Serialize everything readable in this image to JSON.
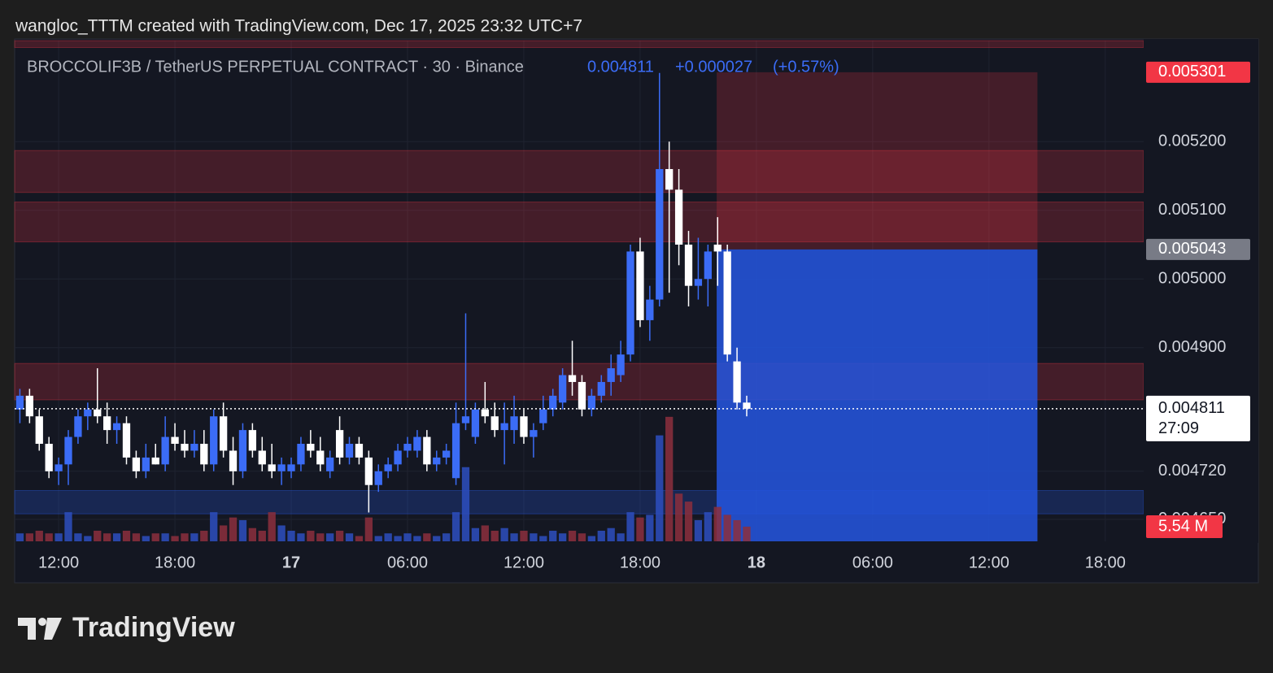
{
  "header": {
    "attribution": "wangloc_TTTM created with TradingView.com, Dec 17, 2025 23:32 UTC+7",
    "symbol": "BROCCOLIF3B / TetherUS PERPETUAL CONTRACT · 30 · Binance",
    "change": "+0.000027",
    "change_pct": "(+0.57%)"
  },
  "footer": {
    "logo": "TradingView"
  },
  "chart_data": {
    "type": "candlestick",
    "x": [
      10,
      10.5,
      11,
      11.5,
      12,
      12.5,
      13,
      13.5,
      14,
      14.5,
      15,
      15.5,
      16,
      16.5,
      17,
      17.5,
      18,
      18.5,
      19,
      19.5,
      20,
      20.5,
      21,
      21.5,
      22,
      22.5,
      23,
      23.5,
      24,
      24.5,
      25,
      25.5,
      26,
      26.5,
      27,
      27.5,
      28,
      28.5,
      29,
      29.5,
      30,
      30.5,
      31,
      31.5,
      32,
      32.5,
      33,
      33.5,
      34,
      34.5,
      35,
      35.5,
      36,
      36.5,
      37,
      37.5,
      38,
      38.5,
      39,
      39.5,
      40,
      40.5,
      41,
      41.5,
      42,
      42.5,
      43,
      43.5,
      44,
      44.5,
      45,
      45.5,
      46,
      46.5,
      47,
      47.5
    ],
    "open": [
      0.00481,
      0.00483,
      0.0048,
      0.00476,
      0.00472,
      0.00473,
      0.00477,
      0.0048,
      0.00481,
      0.0048,
      0.00478,
      0.00479,
      0.00474,
      0.00472,
      0.00474,
      0.00473,
      0.00477,
      0.00476,
      0.00475,
      0.00476,
      0.00473,
      0.0048,
      0.00475,
      0.00472,
      0.00478,
      0.00475,
      0.00473,
      0.00472,
      0.00472,
      0.00473,
      0.00476,
      0.00475,
      0.00472,
      0.00478,
      0.00474,
      0.00476,
      0.00474,
      0.0047,
      0.00472,
      0.00473,
      0.00475,
      0.00475,
      0.00477,
      0.00473,
      0.00474,
      0.00471,
      0.00479,
      0.00477,
      0.00481,
      0.0048,
      0.00478,
      0.00478,
      0.0048,
      0.00477,
      0.00479,
      0.00481,
      0.00482,
      0.00486,
      0.00485,
      0.00481,
      0.00483,
      0.00485,
      0.00486,
      0.00489,
      0.00504,
      0.00494,
      0.00497,
      0.00516,
      0.00513,
      0.00505,
      0.00499,
      0.005,
      0.00505,
      0.00504,
      0.00488,
      0.00482
    ],
    "high": [
      0.00484,
      0.00484,
      0.00481,
      0.00477,
      0.00474,
      0.00478,
      0.00481,
      0.00482,
      0.00487,
      0.00482,
      0.0048,
      0.0048,
      0.00475,
      0.00476,
      0.00476,
      0.0048,
      0.00479,
      0.00478,
      0.00478,
      0.00478,
      0.00481,
      0.00482,
      0.00477,
      0.00479,
      0.00479,
      0.00477,
      0.00476,
      0.00474,
      0.00474,
      0.00477,
      0.00478,
      0.00477,
      0.00475,
      0.0048,
      0.00477,
      0.00477,
      0.00475,
      0.00473,
      0.00474,
      0.00476,
      0.00477,
      0.00478,
      0.00478,
      0.00475,
      0.00476,
      0.00482,
      0.00495,
      0.00482,
      0.00485,
      0.00482,
      0.00482,
      0.00483,
      0.00481,
      0.00479,
      0.00483,
      0.00484,
      0.00487,
      0.00491,
      0.00486,
      0.00484,
      0.00486,
      0.00489,
      0.00491,
      0.00505,
      0.00506,
      0.00499,
      0.0053,
      0.0052,
      0.00516,
      0.00507,
      0.00506,
      0.00505,
      0.00509,
      0.00505,
      0.0049,
      0.00483
    ],
    "low": [
      0.00479,
      0.00479,
      0.00475,
      0.00471,
      0.0047,
      0.0047,
      0.00476,
      0.00478,
      0.00479,
      0.00476,
      0.00476,
      0.00473,
      0.00471,
      0.00471,
      0.00473,
      0.00472,
      0.00475,
      0.00474,
      0.00474,
      0.00472,
      0.00472,
      0.00474,
      0.0047,
      0.00471,
      0.00474,
      0.00472,
      0.00471,
      0.0047,
      0.00471,
      0.00472,
      0.00474,
      0.00472,
      0.00471,
      0.00473,
      0.00473,
      0.00473,
      0.00466,
      0.00469,
      0.00471,
      0.00472,
      0.00474,
      0.00474,
      0.00472,
      0.00472,
      0.00473,
      0.0047,
      0.00478,
      0.00476,
      0.00479,
      0.00477,
      0.00473,
      0.00476,
      0.00476,
      0.00474,
      0.00478,
      0.0048,
      0.00481,
      0.00483,
      0.0048,
      0.0048,
      0.00482,
      0.00483,
      0.00485,
      0.00488,
      0.00493,
      0.00491,
      0.00496,
      0.00498,
      0.00502,
      0.00496,
      0.00497,
      0.00496,
      0.00499,
      0.00488,
      0.00481,
      0.0048
    ],
    "close": [
      0.00483,
      0.0048,
      0.00476,
      0.00472,
      0.00473,
      0.00477,
      0.0048,
      0.00481,
      0.0048,
      0.00478,
      0.00479,
      0.00474,
      0.00472,
      0.00474,
      0.00473,
      0.00477,
      0.00476,
      0.00475,
      0.00476,
      0.00473,
      0.0048,
      0.00475,
      0.00472,
      0.00478,
      0.00475,
      0.00473,
      0.00472,
      0.00473,
      0.00473,
      0.00476,
      0.00475,
      0.00473,
      0.00474,
      0.00474,
      0.00476,
      0.00474,
      0.0047,
      0.00472,
      0.00473,
      0.00475,
      0.00476,
      0.00477,
      0.00473,
      0.00474,
      0.00475,
      0.00479,
      0.0048,
      0.00481,
      0.0048,
      0.00478,
      0.00479,
      0.0048,
      0.00477,
      0.00478,
      0.00481,
      0.00483,
      0.00486,
      0.00485,
      0.00481,
      0.00483,
      0.00485,
      0.00487,
      0.00489,
      0.00504,
      0.00494,
      0.00497,
      0.00516,
      0.00513,
      0.00505,
      0.00499,
      0.005,
      0.00504,
      0.00504,
      0.00489,
      0.00482,
      0.004811
    ],
    "volume": [
      3,
      3,
      4,
      3,
      3,
      11,
      3,
      2,
      4,
      3,
      3,
      4,
      3,
      2,
      3,
      3,
      2,
      3,
      3,
      4,
      11,
      6,
      9,
      8,
      5,
      4,
      11,
      6,
      4,
      3,
      4,
      3,
      3,
      4,
      3,
      2,
      9,
      2,
      3,
      2,
      3,
      2,
      3,
      2,
      3,
      11,
      28,
      5,
      6,
      4,
      5,
      3,
      4,
      3,
      2,
      4,
      3,
      4,
      3,
      2,
      4,
      5,
      3,
      11,
      9,
      10,
      40,
      47,
      18,
      15,
      8,
      11,
      13,
      10,
      8,
      5.54
    ],
    "volume_label": "5.54 M",
    "volume_ylim": [
      0,
      189
    ],
    "up_color": "#3b6cf6",
    "down_color": "#ffffff",
    "volume_up_color": "#2d4fbf",
    "volume_down_color": "#8c2f3d",
    "xlim": [
      9.73,
      67.98
    ],
    "xticks": [
      {
        "value": 12,
        "label": "12:00"
      },
      {
        "value": 18,
        "label": "18:00"
      },
      {
        "value": 24,
        "label": "17"
      },
      {
        "value": 30,
        "label": "06:00"
      },
      {
        "value": 36,
        "label": "12:00"
      },
      {
        "value": 42,
        "label": "18:00"
      },
      {
        "value": 48,
        "label": "18"
      },
      {
        "value": 54,
        "label": "06:00"
      },
      {
        "value": 60,
        "label": "12:00"
      },
      {
        "value": 66,
        "label": "18:00"
      }
    ],
    "ylim": [
      0.004618,
      0.005347
    ],
    "yticks": [
      {
        "value": 0.0052,
        "label": "0.005200"
      },
      {
        "value": 0.0051,
        "label": "0.005100"
      },
      {
        "value": 0.005,
        "label": "0.005000"
      },
      {
        "value": 0.0049,
        "label": "0.004900"
      },
      {
        "value": 0.00472,
        "label": "0.004720"
      },
      {
        "value": 0.00465,
        "label": "0.004650"
      }
    ],
    "grid": true,
    "zones": [
      {
        "low": 0.005337,
        "high": 0.005347,
        "color": "#f23645"
      },
      {
        "low": 0.005126,
        "high": 0.005187,
        "color": "#f23645"
      },
      {
        "low": 0.005054,
        "high": 0.005112,
        "color": "#f23645"
      },
      {
        "low": 0.004824,
        "high": 0.004877,
        "color": "#f23645"
      },
      {
        "low": 0.004658,
        "high": 0.004692,
        "color": "#2962ff"
      }
    ],
    "position": {
      "x_start": 45.95,
      "x_end": 62.5,
      "entry": 0.005043,
      "stop": 0.005301,
      "target": 0.004618
    },
    "last_price": 0.004811,
    "countdown": "27:09"
  }
}
